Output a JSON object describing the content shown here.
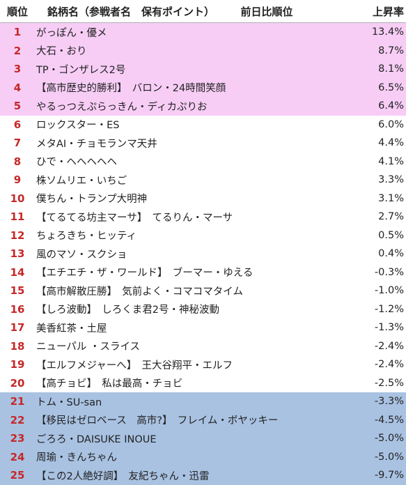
{
  "header": {
    "rank": "順位",
    "name": "銘柄名（参戦者名　保有ポイント）　　　前日比順位",
    "change": "上昇率"
  },
  "rows": [
    {
      "rank": "1",
      "name": "がっぽん・優メ",
      "change": "13.4%",
      "group": "top"
    },
    {
      "rank": "2",
      "name": "大石・おり",
      "change": "8.7%",
      "group": "top"
    },
    {
      "rank": "3",
      "name": "TP・ゴンザレス2号",
      "change": "8.1%",
      "group": "top"
    },
    {
      "rank": "4",
      "name": "【高市歴史的勝利】　バロン・24時間笑顔",
      "change": "6.5%",
      "group": "top"
    },
    {
      "rank": "5",
      "name": "やるっつえぷらっきん・ディカぷりお",
      "change": "6.4%",
      "group": "top"
    },
    {
      "rank": "6",
      "name": "ロックスター・ES",
      "change": "6.0%",
      "group": "mid"
    },
    {
      "rank": "7",
      "name": "メタAI・チョモランマ天井",
      "change": "4.4%",
      "group": "mid"
    },
    {
      "rank": "8",
      "name": "ひで・ヘヘヘヘヘ",
      "change": "4.1%",
      "group": "mid"
    },
    {
      "rank": "9",
      "name": "株ソムリエ・いちご",
      "change": "3.3%",
      "group": "mid"
    },
    {
      "rank": "10",
      "name": "僕ちん・トランプ大明神",
      "change": "3.1%",
      "group": "mid"
    },
    {
      "rank": "11",
      "name": "【てるてる坊主マーサ】　てるりん・マーサ",
      "change": "2.7%",
      "group": "mid"
    },
    {
      "rank": "12",
      "name": "ちょろきち・ヒッティ",
      "change": "0.5%",
      "group": "mid"
    },
    {
      "rank": "13",
      "name": "風のマソ・スクショ",
      "change": "0.4%",
      "group": "mid"
    },
    {
      "rank": "14",
      "name": "【エチエチ・ザ・ワールド】　ブーマー・ゆえる",
      "change": "-0.3%",
      "group": "mid"
    },
    {
      "rank": "15",
      "name": "【高市解散圧勝】　気前よく・コマコマタイム",
      "change": "-1.0%",
      "group": "mid"
    },
    {
      "rank": "16",
      "name": "【しろ波動】　しろくま君2号・神秘波動",
      "change": "-1.2%",
      "group": "mid"
    },
    {
      "rank": "17",
      "name": "美香紅茶・土屋",
      "change": "-1.3%",
      "group": "mid"
    },
    {
      "rank": "18",
      "name": "ニューパル ・スライス",
      "change": "-2.4%",
      "group": "mid"
    },
    {
      "rank": "19",
      "name": "【エルフメジャーへ】　王大谷翔平・エルフ",
      "change": "-2.4%",
      "group": "mid"
    },
    {
      "rank": "20",
      "name": "【高チョビ】　私は最高・チョビ",
      "change": "-2.5%",
      "group": "mid"
    },
    {
      "rank": "21",
      "name": "トム・SU-san",
      "change": "-3.3%",
      "group": "bottom"
    },
    {
      "rank": "22",
      "name": "【移民はゼロベース　高市?】　フレイム・ボヤッキー",
      "change": "-4.5%",
      "group": "bottom"
    },
    {
      "rank": "23",
      "name": "ごろろ・DAISUKE INOUE",
      "change": "-5.0%",
      "group": "bottom"
    },
    {
      "rank": "24",
      "name": "周瑜・きんちゃん",
      "change": "-5.0%",
      "group": "bottom"
    },
    {
      "rank": "25",
      "name": "【この2人絶好調】　友紀ちゃん・迅雷",
      "change": "-9.7%",
      "group": "bottom"
    }
  ]
}
